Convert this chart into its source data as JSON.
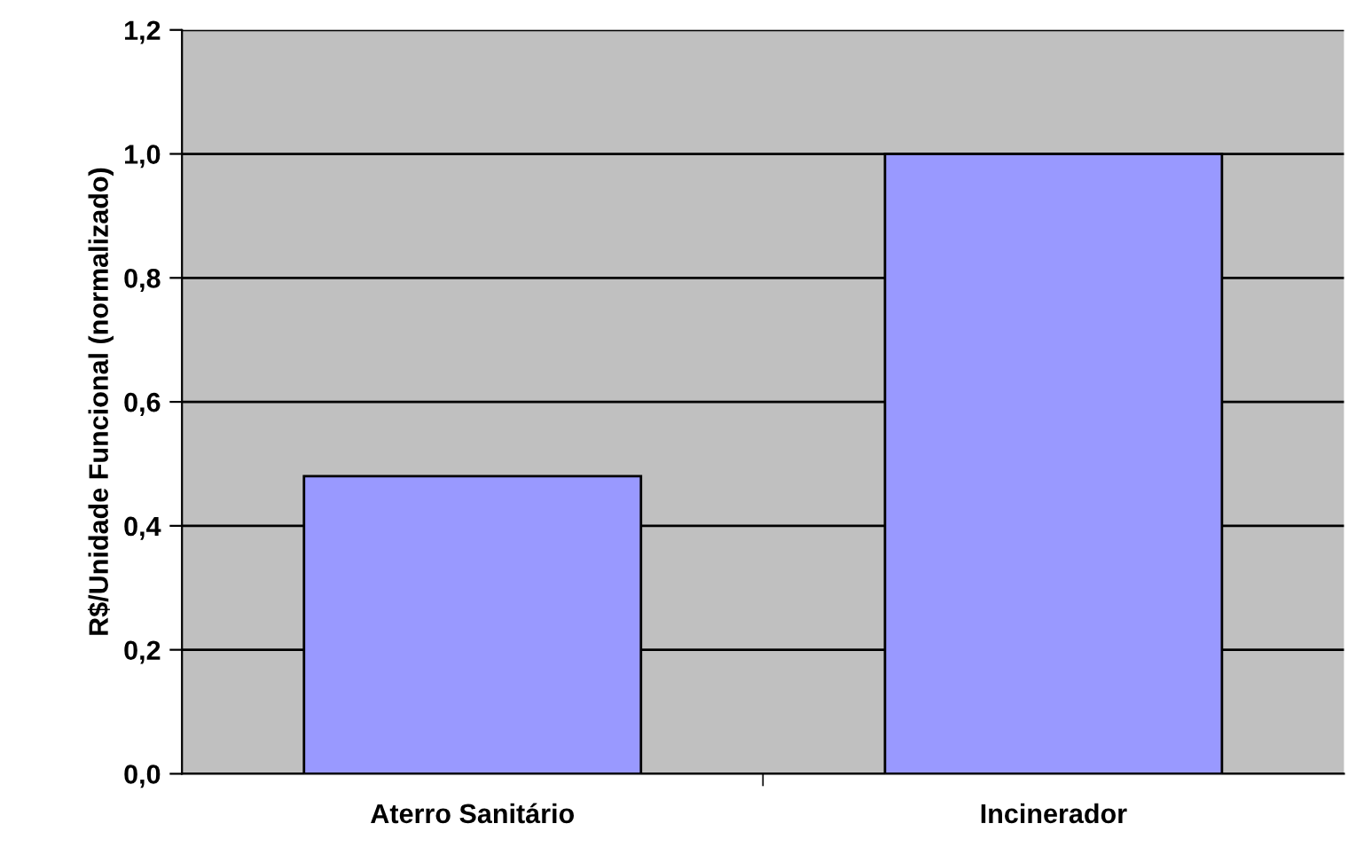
{
  "chart_data": {
    "type": "bar",
    "ylabel": "R$/Unidade Funcional (normalizado)",
    "categories": [
      "Aterro Sanitário",
      "Incinerador"
    ],
    "values": [
      0.48,
      1.0
    ],
    "color": "#9999ff",
    "ylim": [
      0,
      1.2
    ],
    "yticks": [
      {
        "value": 0,
        "label": "0,0"
      },
      {
        "value": 0.2,
        "label": "0,2"
      },
      {
        "value": 0.4,
        "label": "0,4"
      },
      {
        "value": 0.6,
        "label": "0,6"
      },
      {
        "value": 0.8,
        "label": "0,8"
      },
      {
        "value": 1.0,
        "label": "1,0"
      },
      {
        "value": 1.2,
        "label": "1,2"
      }
    ],
    "grid": "y",
    "legend": false
  }
}
